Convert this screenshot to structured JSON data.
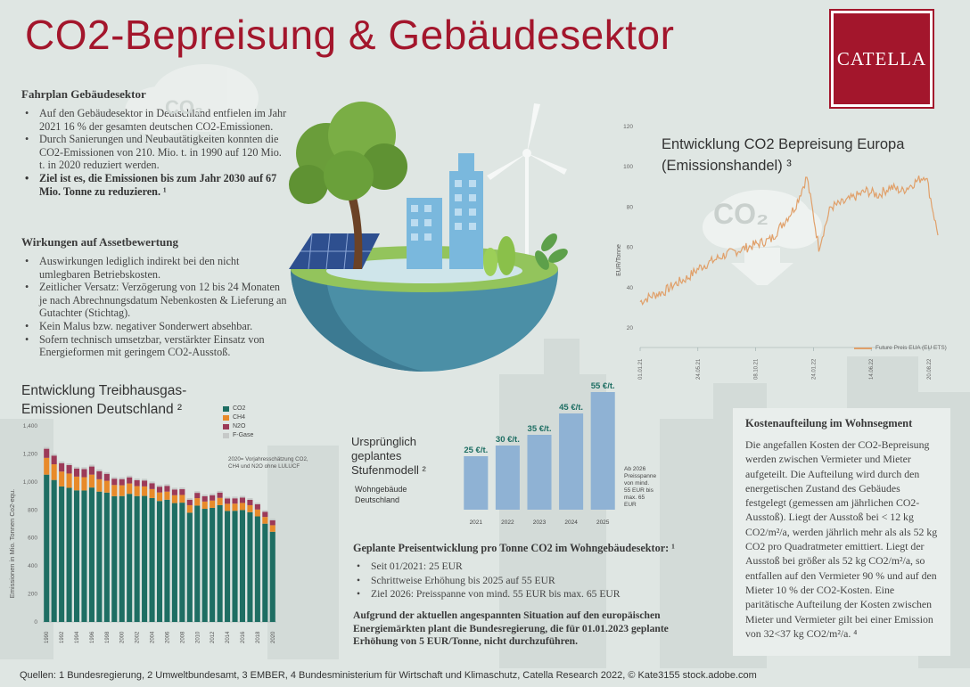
{
  "title": "CO2-Bepreisung & Gebäudesektor",
  "logo": "CATELLA",
  "fahrplan": {
    "heading": "Fahrplan Gebäudesektor",
    "items": [
      "Auf den Gebäudesektor in Deutschland entfielen im Jahr 2021 16 % der gesamten deutschen CO2-Emissionen.",
      "Durch Sanierungen und Neubautätigkeiten konnten die CO2-Emissionen von 210. Mio. t. in 1990 auf 120 Mio. t. in 2020 reduziert werden.",
      "Ziel ist es, die Emissionen bis zum Jahr 2030 auf 67 Mio. Tonne zu reduzieren. ¹"
    ]
  },
  "wirkungen": {
    "heading": "Wirkungen auf Assetbewertung",
    "items": [
      "Auswirkungen lediglich indirekt bei den nicht umlegbaren Betriebskosten.",
      "Zeitlicher Versatz: Verzögerung von 12 bis 24 Monaten je nach Abrechnungsdatum Nebenkosten & Lieferung an Gutachter (Stichtag).",
      "Kein Malus bzw. negativer Sonderwert absehbar.",
      "Sofern technisch umsetzbar, verstärkter Einsatz von Energieformen mit geringem CO2-Ausstoß."
    ]
  },
  "kosten": {
    "heading": "Kostenaufteilung im Wohnsegment",
    "text": "Die angefallen Kosten der CO2-Bepreisung werden zwischen Vermieter und Mieter aufgeteilt. Die Aufteilung wird durch den energetischen Zustand des Gebäudes festgelegt  (gemessen am jährlichen CO2-Ausstoß). Liegt der Ausstoß bei < 12 kg CO2/m²/a, werden jährlich mehr als als 52 kg CO2 pro Quadratmeter emittiert. Liegt der Ausstoß bei größer als 52 kg CO2/m²/a, so entfallen auf den Vermieter 90 % und auf den Mieter 10 % der CO2-Kosten. Eine paritätische Aufteilung der Kosten zwischen Mieter und Vermieter gilt bei einer Emission von 32<37 kg CO2/m²/a. ⁴"
  },
  "preis": {
    "heading": "Geplante Preisentwicklung pro Tonne CO2 im Wohngebäudesektor: ¹",
    "items": [
      "Seit 01/2021: 25 EUR",
      "Schrittweise Erhöhung bis 2025 auf 55 EUR",
      "Ziel 2026: Preisspanne von mind. 55 EUR bis max. 65 EUR"
    ],
    "note": "Aufgrund der aktuellen angespannten Situation auf den europäischen Energiemärkten plant die Bundesregierung, die für 01.01.2023 geplante Erhöhung von 5 EUR/Tonne, nicht durchzuführen."
  },
  "footer": "Quellen: 1 Bundesregierung, 2 Umweltbundesamt, 3 EMBER, 4 Bundesministerium für Wirtschaft und Klimaschutz, Catella Research 2022, © Kate3155 stock.adobe.com",
  "illustration": {
    "co2_cloud_label": "CO₂",
    "co2_cloud_label_small": "CO₂"
  },
  "chart_data": [
    {
      "type": "line",
      "title": "Entwicklung CO2 Bepreisung Europa (Emissionshandel) ³",
      "ylabel": "EUR/Tonne",
      "ylim": [
        20,
        120
      ],
      "yticks": [
        20,
        40,
        60,
        80,
        100,
        120
      ],
      "xtick_labels": [
        "01.01.21",
        "24.05.21",
        "08.10.21",
        "24.01.22",
        "14.06.22",
        "20.08.22"
      ],
      "legend": "Future Preis EUA (EU ETS)",
      "legend_position": "bottom-right",
      "color": "#e0a06a",
      "x": [
        0,
        0.04,
        0.08,
        0.12,
        0.16,
        0.2,
        0.24,
        0.28,
        0.32,
        0.36,
        0.4,
        0.44,
        0.48,
        0.52,
        0.56,
        0.6,
        0.64,
        0.68,
        0.72,
        0.76,
        0.8,
        0.84,
        0.88,
        0.92,
        0.96,
        1.0
      ],
      "values": [
        33,
        36,
        38,
        42,
        45,
        50,
        53,
        56,
        58,
        60,
        62,
        64,
        72,
        80,
        95,
        60,
        80,
        82,
        85,
        88,
        86,
        90,
        88,
        92,
        96,
        66
      ]
    },
    {
      "type": "bar",
      "title": "Entwicklung Treibhausgas-Emissionen Deutschland ²",
      "ylabel": "Emissionen in Mio. Tonnen Co2-equ.",
      "ylim": [
        0,
        1400
      ],
      "yticks": [
        0,
        200,
        400,
        600,
        800,
        1000,
        1200,
        1400
      ],
      "xtick_labels": [
        "1990",
        "1992",
        "1994",
        "1996",
        "1998",
        "2000",
        "2002",
        "2004",
        "2006",
        "2008",
        "2010",
        "2012",
        "2014",
        "2016",
        "2018",
        "2020"
      ],
      "annotation": "2020= Vorjahresschätzung CO2, CH4 und N2O ohne LULUCF",
      "categories": [
        "1990",
        "1991",
        "1992",
        "1993",
        "1994",
        "1995",
        "1996",
        "1997",
        "1998",
        "1999",
        "2000",
        "2001",
        "2002",
        "2003",
        "2004",
        "2005",
        "2006",
        "2007",
        "2008",
        "2009",
        "2010",
        "2011",
        "2012",
        "2013",
        "2014",
        "2015",
        "2016",
        "2017",
        "2018",
        "2019",
        "2020"
      ],
      "series": [
        {
          "name": "CO2",
          "color": "#1e6e63",
          "values": [
            1052,
            1014,
            968,
            958,
            940,
            939,
            960,
            931,
            924,
            898,
            899,
            915,
            899,
            900,
            885,
            864,
            873,
            849,
            852,
            780,
            831,
            808,
            815,
            834,
            793,
            794,
            799,
            784,
            754,
            702,
            644
          ]
        },
        {
          "name": "CH4",
          "color": "#e88a2a",
          "values": [
            120,
            112,
            106,
            102,
            98,
            95,
            92,
            88,
            84,
            80,
            77,
            74,
            71,
            68,
            64,
            61,
            58,
            56,
            55,
            54,
            53,
            52,
            52,
            52,
            51,
            51,
            51,
            50,
            49,
            48,
            47
          ]
        },
        {
          "name": "N2O",
          "color": "#9c3a58",
          "values": [
            65,
            62,
            60,
            60,
            58,
            58,
            58,
            58,
            50,
            45,
            44,
            44,
            43,
            42,
            42,
            41,
            41,
            41,
            41,
            39,
            38,
            38,
            38,
            38,
            38,
            38,
            38,
            38,
            37,
            36,
            35
          ]
        },
        {
          "name": "F-Gase",
          "color": "#c6c9c8",
          "values": [
            13,
            12,
            12,
            12,
            12,
            13,
            13,
            13,
            12,
            12,
            12,
            12,
            12,
            12,
            12,
            12,
            12,
            12,
            12,
            12,
            12,
            12,
            12,
            12,
            12,
            12,
            12,
            12,
            11,
            11,
            11
          ]
        }
      ]
    },
    {
      "type": "bar",
      "title": "Ursprünglich geplantes Stufenmodell ²",
      "subtitle": "Wohngebäude Deutschland",
      "categories": [
        "2021",
        "2022",
        "2023",
        "2024",
        "2025"
      ],
      "values": [
        25,
        30,
        35,
        45,
        55
      ],
      "value_labels": [
        "25 €/t.",
        "30 €/t.",
        "35 €/t.",
        "45 €/t.",
        "55 €/t."
      ],
      "ylim": [
        0,
        55
      ],
      "color": "#8fb2d4",
      "annotation": "Ab 2026 Preisspanne von mind. 55 EUR bis max. 65 EUR"
    }
  ]
}
